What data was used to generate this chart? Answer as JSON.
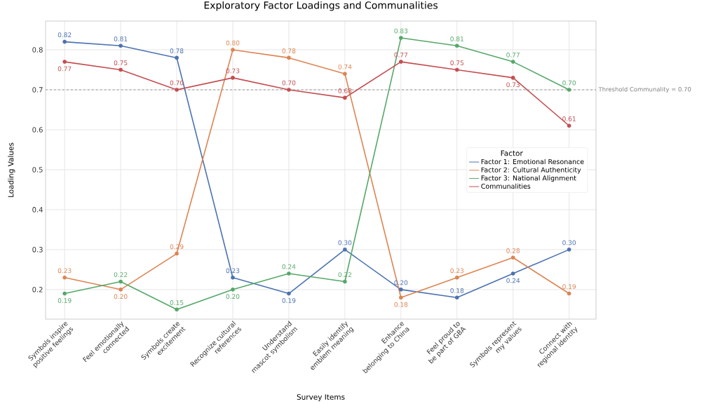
{
  "chart_data": {
    "type": "line",
    "title": "Exploratory Factor Loadings and Communalities",
    "xlabel": "Survey Items",
    "ylabel": "Loading Values",
    "legend_title": "Factor",
    "categories": [
      "Symbols inspire positive feelings",
      "Feel emotionally connected",
      "Symbols create excitement",
      "Recognize cultural references",
      "Understand mascot symbolism",
      "Easily identify emblem meaning",
      "Enhance belonging to China",
      "Feel proud to be part of GBA",
      "Symbols represent my values",
      "Connect with regional identity"
    ],
    "series": [
      {
        "name": "Factor 1: Emotional Resonance",
        "color": "#4c72b0",
        "values": [
          0.82,
          0.81,
          0.78,
          0.23,
          0.19,
          0.3,
          0.2,
          0.18,
          0.24,
          0.3
        ],
        "value_labels": [
          "0.82",
          "0.81",
          "0.78",
          "0.23",
          "0.19",
          "0.30",
          "0.20",
          "0.18",
          "0.24",
          "0.30"
        ]
      },
      {
        "name": "Factor 2: Cultural Authenticity",
        "color": "#dd8452",
        "values": [
          0.23,
          0.2,
          0.29,
          0.8,
          0.78,
          0.74,
          0.18,
          0.23,
          0.28,
          0.19
        ],
        "value_labels": [
          "0.23",
          "0.20",
          "0.29",
          "0.80",
          "0.78",
          "0.74",
          "0.18",
          "0.23",
          "0.28",
          "0.19"
        ]
      },
      {
        "name": "Factor 3: National Alignment",
        "color": "#55a868",
        "values": [
          0.19,
          0.22,
          0.15,
          0.2,
          0.24,
          0.22,
          0.83,
          0.81,
          0.77,
          0.7
        ],
        "value_labels": [
          "0.19",
          "0.22",
          "0.15",
          "0.20",
          "0.24",
          "0.22",
          "0.83",
          "0.81",
          "0.77",
          "0.70"
        ]
      },
      {
        "name": "Communalities",
        "color": "#c44e52",
        "values": [
          0.77,
          0.75,
          0.7,
          0.73,
          0.7,
          0.68,
          0.77,
          0.75,
          0.73,
          0.61
        ],
        "value_labels": [
          "0.77",
          "0.75",
          "0.70",
          "0.73",
          "0.70",
          "0.68",
          "0.77",
          "0.75",
          "0.73",
          "0.61"
        ]
      }
    ],
    "ylim": [
      0.126,
      0.872
    ],
    "yticks": [
      {
        "value": 0.2,
        "label": "0.2"
      },
      {
        "value": 0.3,
        "label": "0.3"
      },
      {
        "value": 0.4,
        "label": "0.4"
      },
      {
        "value": 0.5,
        "label": "0.5"
      },
      {
        "value": 0.6,
        "label": "0.6"
      },
      {
        "value": 0.7,
        "label": "0.7"
      },
      {
        "value": 0.8,
        "label": "0.8"
      }
    ],
    "ref_lines": [
      {
        "axis": "y",
        "value": 0.7,
        "label": "Threshold Communality = 0.70",
        "color": "#808080",
        "line_style": "dashed"
      }
    ],
    "grid": true,
    "legend": "right",
    "marker": "circle",
    "line_style": "solid"
  }
}
